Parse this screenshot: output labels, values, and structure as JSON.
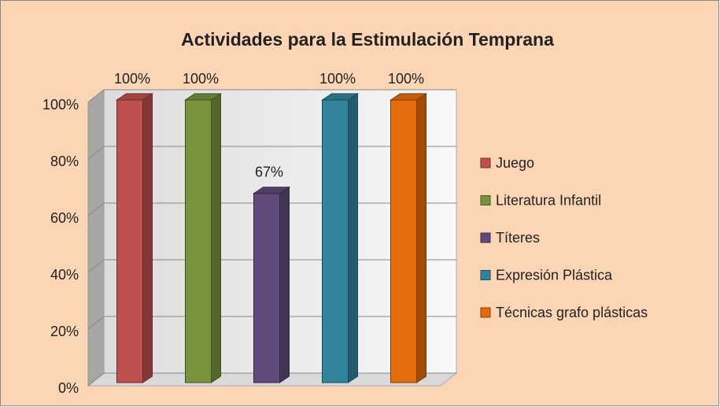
{
  "chart_data": {
    "type": "bar3d",
    "title": "Actividades para la Estimulación Temprana",
    "categories": [
      null
    ],
    "series": [
      {
        "name": "Juego",
        "color": "#C0504D",
        "values": [
          100
        ],
        "value_labels": [
          "100%"
        ]
      },
      {
        "name": "Literatura Infantil",
        "color": "#77933C",
        "values": [
          100
        ],
        "value_labels": [
          "100%"
        ]
      },
      {
        "name": "Títeres",
        "color": "#604A7B",
        "values": [
          67
        ],
        "value_labels": [
          "67%"
        ]
      },
      {
        "name": "Expresión Plástica",
        "color": "#31849B",
        "values": [
          100
        ],
        "value_labels": [
          "100%"
        ]
      },
      {
        "name": "Técnicas grafo plásticas",
        "color": "#E46C0A",
        "values": [
          100
        ],
        "value_labels": [
          "100%"
        ]
      }
    ],
    "ylim": [
      0,
      100
    ],
    "yticks": [
      {
        "value": 0,
        "label": "0%"
      },
      {
        "value": 20,
        "label": "20%"
      },
      {
        "value": 40,
        "label": "40%"
      },
      {
        "value": 60,
        "label": "60%"
      },
      {
        "value": 80,
        "label": "80%"
      },
      {
        "value": 100,
        "label": "100%"
      }
    ],
    "grid": true,
    "legend": "right"
  }
}
